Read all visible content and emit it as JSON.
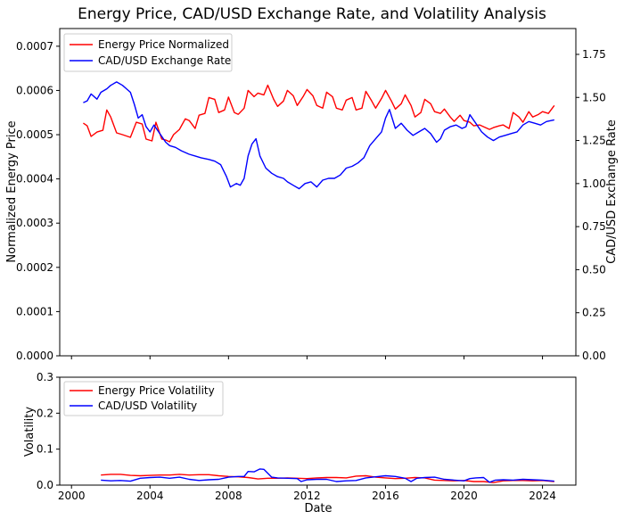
{
  "chart_data": [
    {
      "type": "line",
      "title": "Energy Price, CAD/USD Exchange Rate, and Volatility Analysis",
      "xlabel": "",
      "ylabel": "Normalized Energy Price",
      "y2label": "CAD/USD Exchange Rate",
      "xlim": [
        1999.4,
        2025.7
      ],
      "ylim": [
        0,
        0.00074
      ],
      "y2lim": [
        0,
        1.9
      ],
      "xticks": [
        2000,
        2004,
        2008,
        2012,
        2016,
        2020,
        2024
      ],
      "yticks": [
        "0.0000",
        "0.0001",
        "0.0002",
        "0.0003",
        "0.0004",
        "0.0005",
        "0.0006",
        "0.0007"
      ],
      "yticks_values": [
        0,
        0.0001,
        0.0002,
        0.0003,
        0.0004,
        0.0005,
        0.0006,
        0.0007
      ],
      "y2ticks": [
        "0.00",
        "0.25",
        "0.50",
        "0.75",
        "1.00",
        "1.25",
        "1.50",
        "1.75"
      ],
      "y2ticks_values": [
        0,
        0.25,
        0.5,
        0.75,
        1.0,
        1.25,
        1.5,
        1.75
      ],
      "legend_position": "top-left",
      "grid": false,
      "series": [
        {
          "name": "Energy Price Normalized",
          "color": "#ff0000",
          "axis": "left",
          "x": [
            2000.6,
            2000.8,
            2001.0,
            2001.3,
            2001.6,
            2001.8,
            2002.0,
            2002.3,
            2002.6,
            2003.0,
            2003.3,
            2003.6,
            2003.8,
            2004.1,
            2004.3,
            2004.6,
            2004.8,
            2005.0,
            2005.2,
            2005.5,
            2005.8,
            2006.0,
            2006.3,
            2006.5,
            2006.8,
            2007.0,
            2007.3,
            2007.5,
            2007.8,
            2008.0,
            2008.3,
            2008.5,
            2008.8,
            2009.0,
            2009.3,
            2009.5,
            2009.8,
            2010.0,
            2010.3,
            2010.5,
            2010.8,
            2011.0,
            2011.3,
            2011.5,
            2011.8,
            2012.0,
            2012.3,
            2012.5,
            2012.8,
            2013.0,
            2013.3,
            2013.5,
            2013.8,
            2014.0,
            2014.3,
            2014.5,
            2014.8,
            2015.0,
            2015.3,
            2015.5,
            2015.8,
            2016.0,
            2016.3,
            2016.5,
            2016.8,
            2017.0,
            2017.3,
            2017.5,
            2017.8,
            2018.0,
            2018.3,
            2018.5,
            2018.8,
            2019.0,
            2019.3,
            2019.5,
            2019.8,
            2020.0,
            2020.3,
            2020.5,
            2020.8,
            2021.0,
            2021.3,
            2021.5,
            2021.8,
            2022.0,
            2022.3,
            2022.5,
            2022.8,
            2023.0,
            2023.3,
            2023.5,
            2023.8,
            2024.0,
            2024.3,
            2024.6
          ],
          "y": [
            0.000526,
            0.00052,
            0.000496,
            0.000506,
            0.00051,
            0.000556,
            0.00054,
            0.000504,
            0.0005,
            0.000494,
            0.000528,
            0.000524,
            0.00049,
            0.000486,
            0.000528,
            0.00049,
            0.000488,
            0.000484,
            0.0005,
            0.000512,
            0.000536,
            0.000532,
            0.000514,
            0.000544,
            0.000548,
            0.000584,
            0.00058,
            0.00055,
            0.000556,
            0.000585,
            0.00055,
            0.000546,
            0.00056,
            0.0006,
            0.000586,
            0.000594,
            0.00059,
            0.000612,
            0.00058,
            0.000564,
            0.000576,
            0.0006,
            0.000588,
            0.000566,
            0.000586,
            0.000602,
            0.000588,
            0.000566,
            0.00056,
            0.000596,
            0.000586,
            0.00056,
            0.000556,
            0.000578,
            0.000584,
            0.000556,
            0.00056,
            0.000598,
            0.000576,
            0.00056,
            0.000582,
            0.0006,
            0.000576,
            0.000558,
            0.00057,
            0.00059,
            0.000566,
            0.00054,
            0.00055,
            0.00058,
            0.00057,
            0.000552,
            0.000548,
            0.000558,
            0.00054,
            0.00053,
            0.000544,
            0.000532,
            0.000528,
            0.00052,
            0.000522,
            0.000518,
            0.000512,
            0.000516,
            0.00052,
            0.000522,
            0.000514,
            0.00055,
            0.00054,
            0.000528,
            0.000552,
            0.00054,
            0.000546,
            0.000552,
            0.000548,
            0.000566
          ]
        },
        {
          "name": "CAD/USD Exchange Rate",
          "color": "#0000ff",
          "axis": "right",
          "x": [
            2000.6,
            2000.8,
            2001.0,
            2001.3,
            2001.5,
            2001.8,
            2002.0,
            2002.3,
            2002.6,
            2002.8,
            2003.0,
            2003.2,
            2003.4,
            2003.6,
            2003.8,
            2004.0,
            2004.2,
            2004.5,
            2004.8,
            2005.0,
            2005.3,
            2005.6,
            2006.0,
            2006.3,
            2006.6,
            2007.0,
            2007.3,
            2007.6,
            2007.9,
            2008.1,
            2008.4,
            2008.6,
            2008.8,
            2009.0,
            2009.2,
            2009.4,
            2009.6,
            2009.9,
            2010.2,
            2010.5,
            2010.8,
            2011.0,
            2011.3,
            2011.6,
            2011.9,
            2012.2,
            2012.5,
            2012.8,
            2013.1,
            2013.4,
            2013.7,
            2014.0,
            2014.3,
            2014.6,
            2014.9,
            2015.2,
            2015.5,
            2015.8,
            2016.0,
            2016.2,
            2016.5,
            2016.8,
            2017.1,
            2017.4,
            2017.7,
            2018.0,
            2018.3,
            2018.6,
            2018.8,
            2019.0,
            2019.3,
            2019.6,
            2019.9,
            2020.1,
            2020.3,
            2020.6,
            2020.9,
            2021.2,
            2021.5,
            2021.8,
            2022.1,
            2022.4,
            2022.7,
            2023.0,
            2023.3,
            2023.6,
            2023.9,
            2024.2,
            2024.6
          ],
          "y": [
            1.47,
            1.48,
            1.52,
            1.49,
            1.53,
            1.55,
            1.57,
            1.59,
            1.57,
            1.55,
            1.53,
            1.46,
            1.38,
            1.4,
            1.33,
            1.3,
            1.34,
            1.29,
            1.24,
            1.22,
            1.21,
            1.19,
            1.17,
            1.16,
            1.15,
            1.14,
            1.13,
            1.11,
            1.04,
            0.98,
            1.0,
            0.99,
            1.03,
            1.16,
            1.23,
            1.26,
            1.16,
            1.09,
            1.06,
            1.04,
            1.03,
            1.01,
            0.99,
            0.97,
            1.0,
            1.01,
            0.98,
            1.02,
            1.03,
            1.03,
            1.05,
            1.09,
            1.1,
            1.12,
            1.15,
            1.22,
            1.26,
            1.3,
            1.38,
            1.43,
            1.32,
            1.35,
            1.31,
            1.28,
            1.3,
            1.32,
            1.29,
            1.24,
            1.26,
            1.31,
            1.33,
            1.34,
            1.32,
            1.33,
            1.4,
            1.35,
            1.3,
            1.27,
            1.25,
            1.27,
            1.28,
            1.29,
            1.3,
            1.34,
            1.36,
            1.35,
            1.34,
            1.36,
            1.37
          ]
        }
      ]
    },
    {
      "type": "line",
      "title": "",
      "xlabel": "Date",
      "ylabel": "Volatility",
      "xlim": [
        1999.4,
        2025.7
      ],
      "ylim": [
        0,
        0.3
      ],
      "xticks": [
        2000,
        2004,
        2008,
        2012,
        2016,
        2020,
        2024
      ],
      "yticks": [
        "0.0",
        "0.1",
        "0.2",
        "0.3"
      ],
      "yticks_values": [
        0,
        0.1,
        0.2,
        0.3
      ],
      "legend_position": "top-left",
      "grid": false,
      "series": [
        {
          "name": "Energy Price Volatility",
          "color": "#ff0000",
          "x": [
            2001.5,
            2002.0,
            2002.5,
            2003.0,
            2003.5,
            2004.0,
            2004.5,
            2005.0,
            2005.5,
            2006.0,
            2006.5,
            2007.0,
            2007.5,
            2008.0,
            2008.5,
            2009.0,
            2009.5,
            2010.0,
            2010.5,
            2011.0,
            2011.5,
            2012.0,
            2012.5,
            2013.0,
            2013.5,
            2014.0,
            2014.5,
            2015.0,
            2015.5,
            2016.0,
            2016.5,
            2017.0,
            2017.5,
            2018.0,
            2018.5,
            2019.0,
            2019.5,
            2020.0,
            2020.5,
            2021.0,
            2021.5,
            2022.0,
            2022.5,
            2023.0,
            2023.5,
            2024.0,
            2024.6
          ],
          "y": [
            0.028,
            0.03,
            0.03,
            0.027,
            0.026,
            0.027,
            0.028,
            0.028,
            0.03,
            0.028,
            0.029,
            0.029,
            0.026,
            0.024,
            0.023,
            0.021,
            0.017,
            0.019,
            0.019,
            0.02,
            0.019,
            0.018,
            0.02,
            0.021,
            0.021,
            0.02,
            0.025,
            0.026,
            0.022,
            0.02,
            0.018,
            0.019,
            0.021,
            0.02,
            0.014,
            0.013,
            0.012,
            0.013,
            0.01,
            0.01,
            0.007,
            0.012,
            0.013,
            0.013,
            0.012,
            0.013,
            0.01
          ]
        },
        {
          "name": "CAD/USD Volatility",
          "color": "#0000ff",
          "x": [
            2001.5,
            2002.0,
            2002.5,
            2003.0,
            2003.5,
            2004.0,
            2004.5,
            2005.0,
            2005.5,
            2006.0,
            2006.5,
            2007.0,
            2007.5,
            2008.0,
            2008.5,
            2008.8,
            2009.0,
            2009.3,
            2009.6,
            2009.8,
            2010.2,
            2010.5,
            2011.0,
            2011.5,
            2011.7,
            2012.0,
            2012.5,
            2013.0,
            2013.5,
            2014.0,
            2014.5,
            2015.0,
            2015.5,
            2016.0,
            2016.5,
            2017.0,
            2017.3,
            2017.6,
            2018.0,
            2018.5,
            2019.0,
            2019.5,
            2020.0,
            2020.3,
            2020.6,
            2021.0,
            2021.3,
            2021.6,
            2022.0,
            2022.5,
            2023.0,
            2023.5,
            2024.0,
            2024.6
          ],
          "y": [
            0.014,
            0.012,
            0.013,
            0.011,
            0.019,
            0.021,
            0.022,
            0.019,
            0.022,
            0.016,
            0.013,
            0.015,
            0.016,
            0.022,
            0.024,
            0.024,
            0.038,
            0.037,
            0.045,
            0.044,
            0.022,
            0.02,
            0.019,
            0.018,
            0.01,
            0.015,
            0.016,
            0.016,
            0.01,
            0.012,
            0.013,
            0.02,
            0.023,
            0.026,
            0.024,
            0.019,
            0.01,
            0.019,
            0.021,
            0.022,
            0.016,
            0.014,
            0.012,
            0.018,
            0.02,
            0.021,
            0.008,
            0.014,
            0.015,
            0.014,
            0.016,
            0.015,
            0.014,
            0.011
          ]
        }
      ]
    }
  ]
}
